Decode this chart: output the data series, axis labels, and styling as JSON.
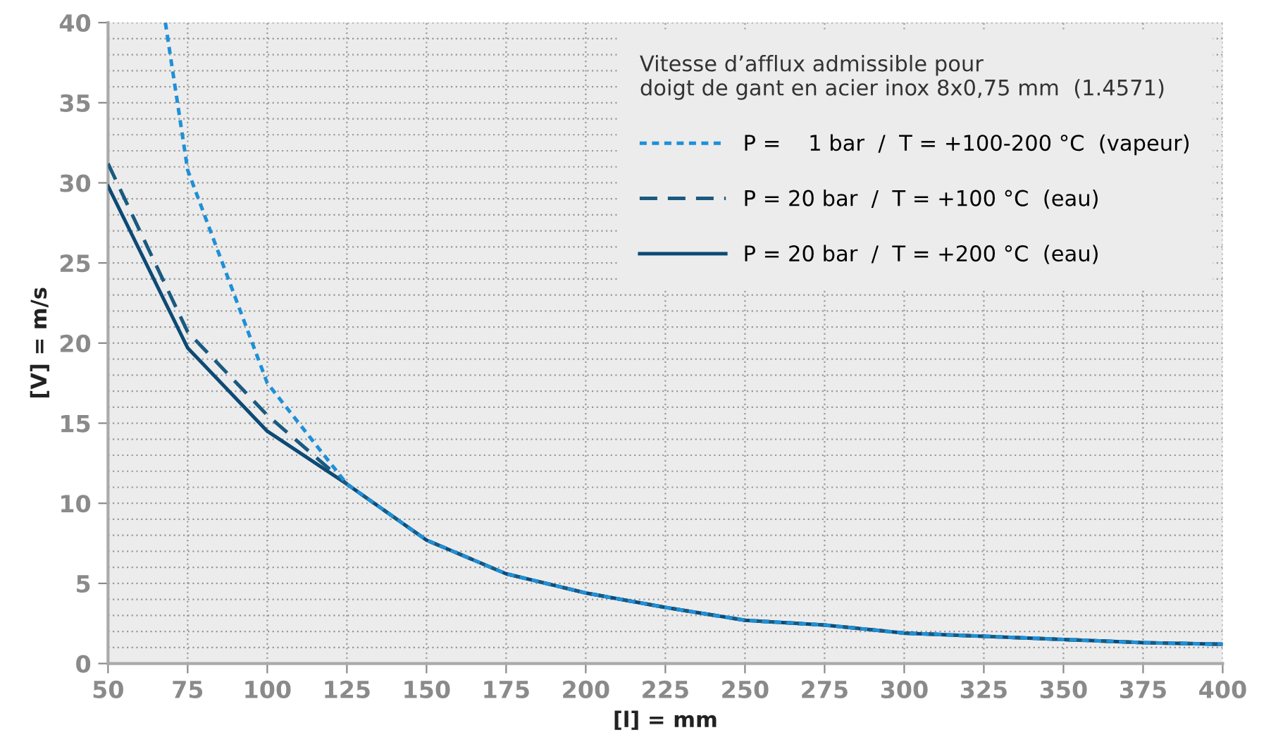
{
  "chart_data": {
    "type": "line",
    "xlabel": "[l] = mm",
    "ylabel": "[V] = m/s",
    "legend_title": "Vitesse d’afflux admissible pour\ndoigt de gant en acier inox 8x0,75 mm  (1.4571)",
    "xlim": [
      50,
      400
    ],
    "xticks": [
      50,
      75,
      100,
      125,
      150,
      175,
      200,
      225,
      250,
      275,
      300,
      325,
      350,
      375,
      400
    ],
    "ylim": [
      0,
      40
    ],
    "yticks": [
      0,
      5,
      10,
      15,
      20,
      25,
      30,
      35,
      40
    ],
    "grid": true,
    "legend": "top right",
    "marker": "none",
    "series": [
      {
        "name": "P = 20 bar  /  T = +200 °C  (eau)",
        "color": "#0d4a75",
        "line_style": "solid",
        "x": [
          50,
          75,
          100,
          125,
          150,
          175,
          200,
          225,
          250,
          275,
          300,
          325,
          350,
          375,
          400
        ],
        "values": [
          29.8,
          19.7,
          14.5,
          11.2,
          7.7,
          5.6,
          4.4,
          3.5,
          2.7,
          2.4,
          1.9,
          1.7,
          1.5,
          1.3,
          1.2
        ]
      },
      {
        "name": "P = 20 bar  /  T = +100 °C  (eau)",
        "color": "#1a5a80",
        "line_style": "dashed",
        "x": [
          50,
          75,
          100,
          125,
          150,
          175,
          200,
          225,
          250,
          275,
          300,
          325,
          350,
          375,
          400
        ],
        "values": [
          31.2,
          20.7,
          15.5,
          11.2,
          7.7,
          5.6,
          4.4,
          3.5,
          2.7,
          2.4,
          1.9,
          1.7,
          1.5,
          1.3,
          1.2
        ]
      },
      {
        "name": "P =    1 bar  /  T = +100-200 °C  (vapeur)",
        "color": "#1e90d8",
        "line_style": "dotted",
        "x": [
          68,
          75,
          100,
          125,
          150,
          175,
          200,
          225,
          250,
          275,
          300,
          325,
          350,
          375,
          400
        ],
        "values": [
          40,
          30.8,
          17.5,
          11.2,
          7.7,
          5.6,
          4.4,
          3.5,
          2.7,
          2.4,
          1.9,
          1.7,
          1.5,
          1.3,
          1.2
        ]
      }
    ]
  }
}
